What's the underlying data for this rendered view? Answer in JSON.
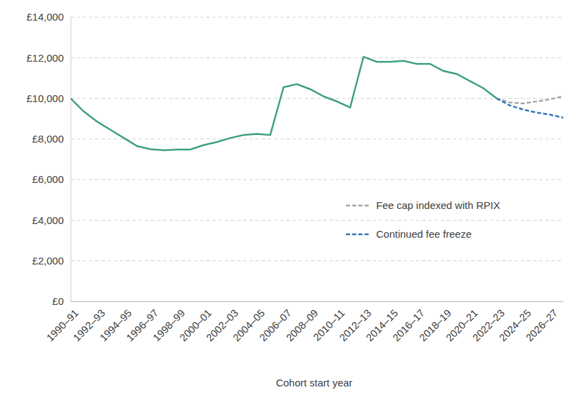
{
  "chart_data": {
    "type": "line",
    "x_label": "Cohort start year",
    "categories": [
      "1990–91",
      null,
      "1992–93",
      null,
      "1994–95",
      null,
      "1996–97",
      null,
      "1998–99",
      null,
      "2000–01",
      null,
      "2002–03",
      null,
      "2004–05",
      null,
      "2006–07",
      null,
      "2008–09",
      null,
      "2010–11",
      null,
      "2012–13",
      null,
      "2014–15",
      null,
      "2016–17",
      null,
      "2018–19",
      null,
      "2020–21",
      null,
      "2022–23",
      null,
      "2024–25",
      null,
      "2026–27",
      null
    ],
    "series": [
      {
        "color": "#3c9f7d",
        "line_style": "solid",
        "values": [
          10000,
          9350,
          8850,
          8450,
          8050,
          7650,
          7500,
          7450,
          7480,
          7480,
          7700,
          7850,
          8050,
          8200,
          8250,
          8200,
          10550,
          10700,
          10450,
          10100,
          9850,
          9550,
          12050,
          11800,
          11800,
          11850,
          11700,
          11700,
          11350,
          11200,
          10850,
          10500,
          10000,
          null,
          null,
          null,
          null,
          null
        ]
      },
      {
        "name": "Fee cap indexed with RPIX",
        "color": "#a6a6a6",
        "line_style": "dashed",
        "values": [
          null,
          null,
          null,
          null,
          null,
          null,
          null,
          null,
          null,
          null,
          null,
          null,
          null,
          null,
          null,
          null,
          null,
          null,
          null,
          null,
          null,
          null,
          null,
          null,
          null,
          null,
          null,
          null,
          null,
          null,
          null,
          null,
          10000,
          9800,
          9750,
          9850,
          9950,
          10100
        ]
      },
      {
        "name": "Continued fee freeze",
        "color": "#2e75b6",
        "line_style": "dashed",
        "values": [
          null,
          null,
          null,
          null,
          null,
          null,
          null,
          null,
          null,
          null,
          null,
          null,
          null,
          null,
          null,
          null,
          null,
          null,
          null,
          null,
          null,
          null,
          null,
          null,
          null,
          null,
          null,
          null,
          null,
          null,
          null,
          null,
          10000,
          9650,
          9450,
          9300,
          9200,
          9050
        ]
      }
    ],
    "ylim": [
      0,
      14000
    ],
    "yticks": [
      {
        "value": 0,
        "label": "£0"
      },
      {
        "value": 2000,
        "label": "£2,000"
      },
      {
        "value": 4000,
        "label": "£4,000"
      },
      {
        "value": 6000,
        "label": "£6,000"
      },
      {
        "value": 8000,
        "label": "£8,000"
      },
      {
        "value": 10000,
        "label": "£10,000"
      },
      {
        "value": 12000,
        "label": "£12,000"
      },
      {
        "value": 14000,
        "label": "£14,000"
      }
    ],
    "grid": true,
    "legend": "right"
  }
}
